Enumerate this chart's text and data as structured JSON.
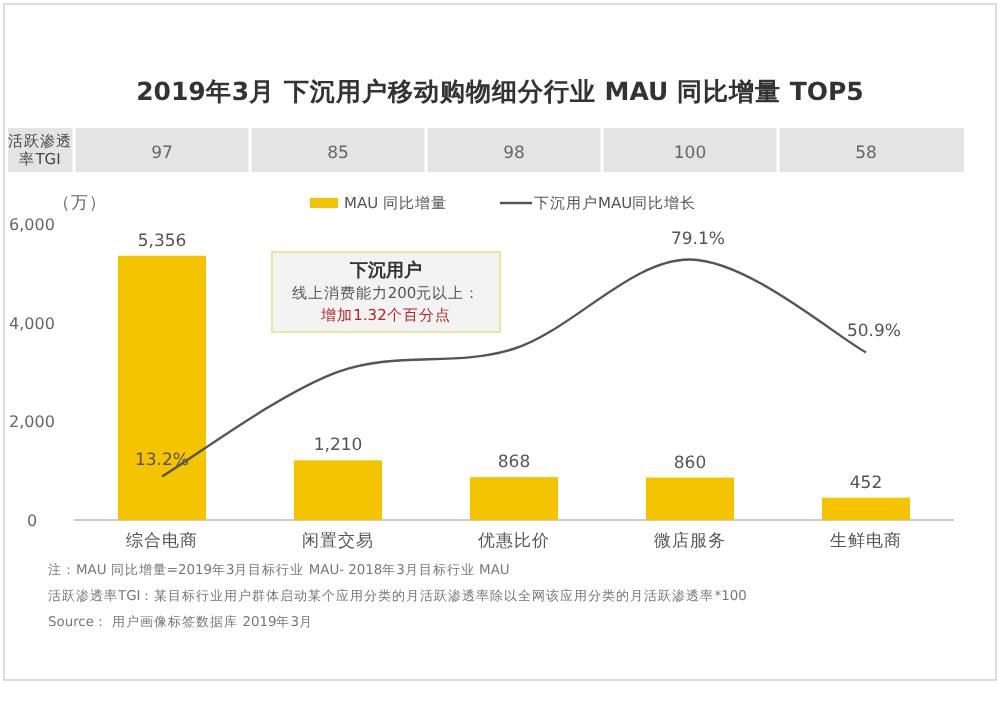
{
  "chart_data": {
    "type": "bar",
    "title": "2019年3月 下沉用户移动购物细分行业 MAU 同比增量 TOP5",
    "ylabel": "（万）",
    "categories": [
      "综合电商",
      "闲置交易",
      "优惠比价",
      "微店服务",
      "生鲜电商"
    ],
    "ylim": [
      0,
      6000
    ],
    "yticks": [
      {
        "value": 0,
        "label": "0"
      },
      {
        "value": 2000,
        "label": "2,000"
      },
      {
        "value": 4000,
        "label": "4,000"
      },
      {
        "value": 6000,
        "label": "6,000"
      }
    ],
    "series": [
      {
        "name": "MAU 同比增量",
        "color": "#f5c400",
        "values": [
          5356,
          1210,
          868,
          860,
          452
        ],
        "value_labels": [
          "5,356",
          "1,210",
          "868",
          "860",
          "452"
        ]
      },
      {
        "name": "下沉用户MAU同比增长",
        "type": "line",
        "axis": "y2",
        "color": "#555555",
        "values": [
          13.2,
          45,
          52,
          79.1,
          50.9
        ],
        "value_labels": [
          "13.2%",
          null,
          null,
          "79.1%",
          "50.9%"
        ]
      }
    ],
    "legend": "top",
    "grid": false,
    "annotations": [
      "活跃渗透率TGI",
      "下沉用户",
      "线上消费能力200元以上：",
      "增加1.32个百分点",
      "注：MAU 同比增量=2019年3月目标行业 MAU- 2018年3月目标行业 MAU",
      "活跃渗透率TGI：某目标行业用户群体启动某个应用分类的月活跃渗透率除以全网该应用分类的月活跃渗透率*100",
      "Source： 用户画像标签数据库 2019年3月",
      "97",
      "85",
      "98",
      "100",
      "58"
    ]
  }
}
